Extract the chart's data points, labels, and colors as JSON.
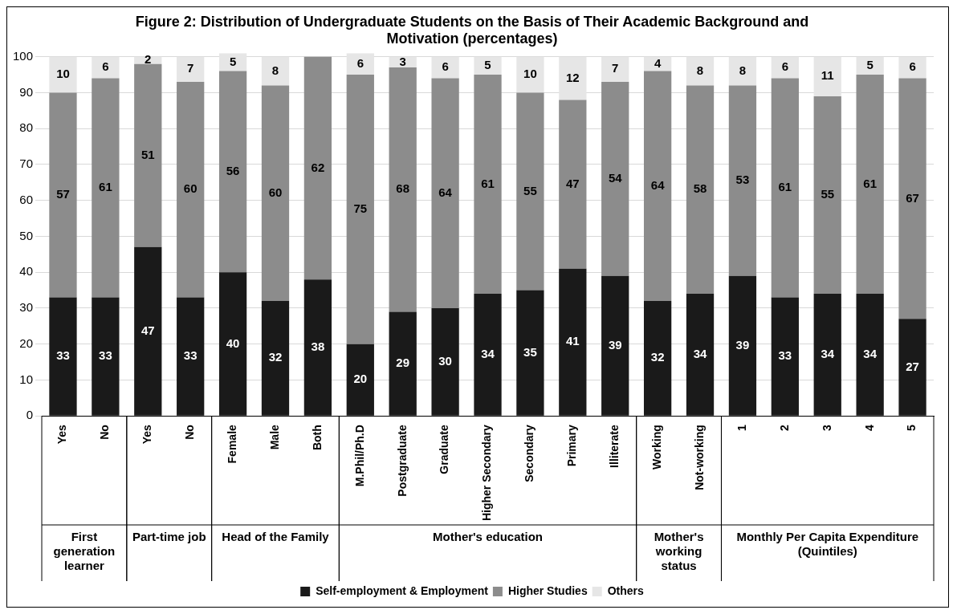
{
  "chart_data": {
    "type": "bar",
    "stacked": true,
    "title": "Figure 2: Distribution of Undergraduate Students on the Basis of Their Academic Background and Motivation (percentages)",
    "categories": [
      "Yes",
      "No",
      "Yes",
      "No",
      "Female",
      "Male",
      "Both",
      "M.Phil/Ph.D",
      "Postgraduate",
      "Graduate",
      "Higher Secondary",
      "Secondary",
      "Primary",
      "Illiterate",
      "Working",
      "Not-working",
      "1",
      "2",
      "3",
      "4",
      "5"
    ],
    "series": [
      {
        "name": "Self-employment & Employment",
        "color": "#1a1a1a",
        "values": [
          33,
          33,
          47,
          33,
          40,
          32,
          38,
          20,
          29,
          30,
          34,
          35,
          41,
          39,
          32,
          34,
          39,
          33,
          34,
          34,
          27
        ]
      },
      {
        "name": "Higher Studies",
        "color": "#8c8c8c",
        "values": [
          57,
          61,
          51,
          60,
          56,
          60,
          62,
          75,
          68,
          64,
          61,
          55,
          47,
          54,
          64,
          58,
          53,
          61,
          55,
          61,
          67
        ]
      },
      {
        "name": "Others",
        "color": "#e6e6e6",
        "values": [
          10,
          6,
          2,
          7,
          5,
          8,
          null,
          6,
          3,
          6,
          5,
          10,
          12,
          7,
          4,
          8,
          8,
          6,
          11,
          5,
          6
        ]
      }
    ],
    "annotations": [
      "First generation learner",
      "Part-time job",
      "Head of the Family",
      "Mother's education",
      "Mother's working status",
      "Monthly Per Capita Expenditure (Quintiles)"
    ],
    "ylim": [
      0,
      101
    ],
    "yticks": [
      0,
      10,
      20,
      30,
      40,
      50,
      60,
      70,
      80,
      90,
      100
    ],
    "grid": "y",
    "legend": "bottom",
    "data_labels": true
  }
}
